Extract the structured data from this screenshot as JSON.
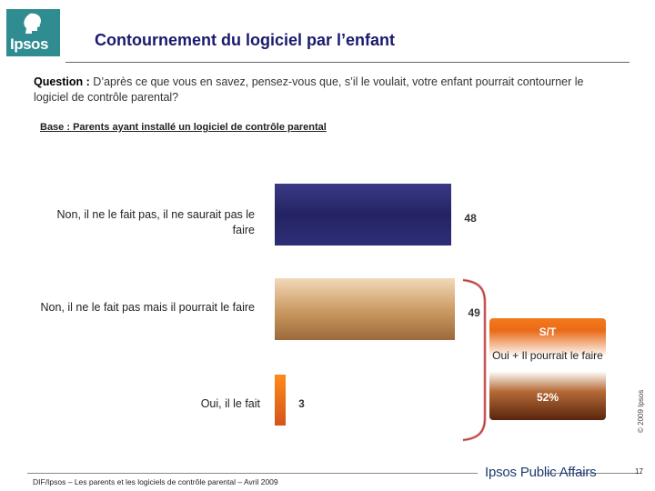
{
  "header": {
    "logo_text": "Ipsos",
    "title": "Contournement du logiciel par l’enfant"
  },
  "question": {
    "label": "Question :",
    "text": "D’après ce que vous en savez, pensez-vous que, s’il le voulait, votre enfant pourrait contourner le logiciel de contrôle parental?"
  },
  "base": "Base : Parents ayant installé un logiciel de contrôle parental",
  "chart_data": {
    "type": "bar",
    "orientation": "horizontal",
    "categories": [
      "Non, il ne le fait pas, il ne saurait pas le faire",
      "Non, il ne le fait pas mais il pourrait le faire",
      "Oui, il le fait"
    ],
    "values": [
      48,
      49,
      3
    ],
    "value_labels": [
      "48",
      "49",
      "3"
    ],
    "colors": [
      "#2a2a70",
      "#c9975f",
      "#e86a1a"
    ],
    "grid": false,
    "legend": "none",
    "annotation": {
      "title": "S/T",
      "subtitle": "Oui + Il pourrait le faire",
      "value": "52%"
    }
  },
  "footer": {
    "brand": "Ipsos Public Affairs",
    "source": "DIF/Ipsos – Les parents et les logiciels de contrôle parental – Avril 2009",
    "copyright": "© 2009 Ipsos",
    "page_number": "17"
  }
}
